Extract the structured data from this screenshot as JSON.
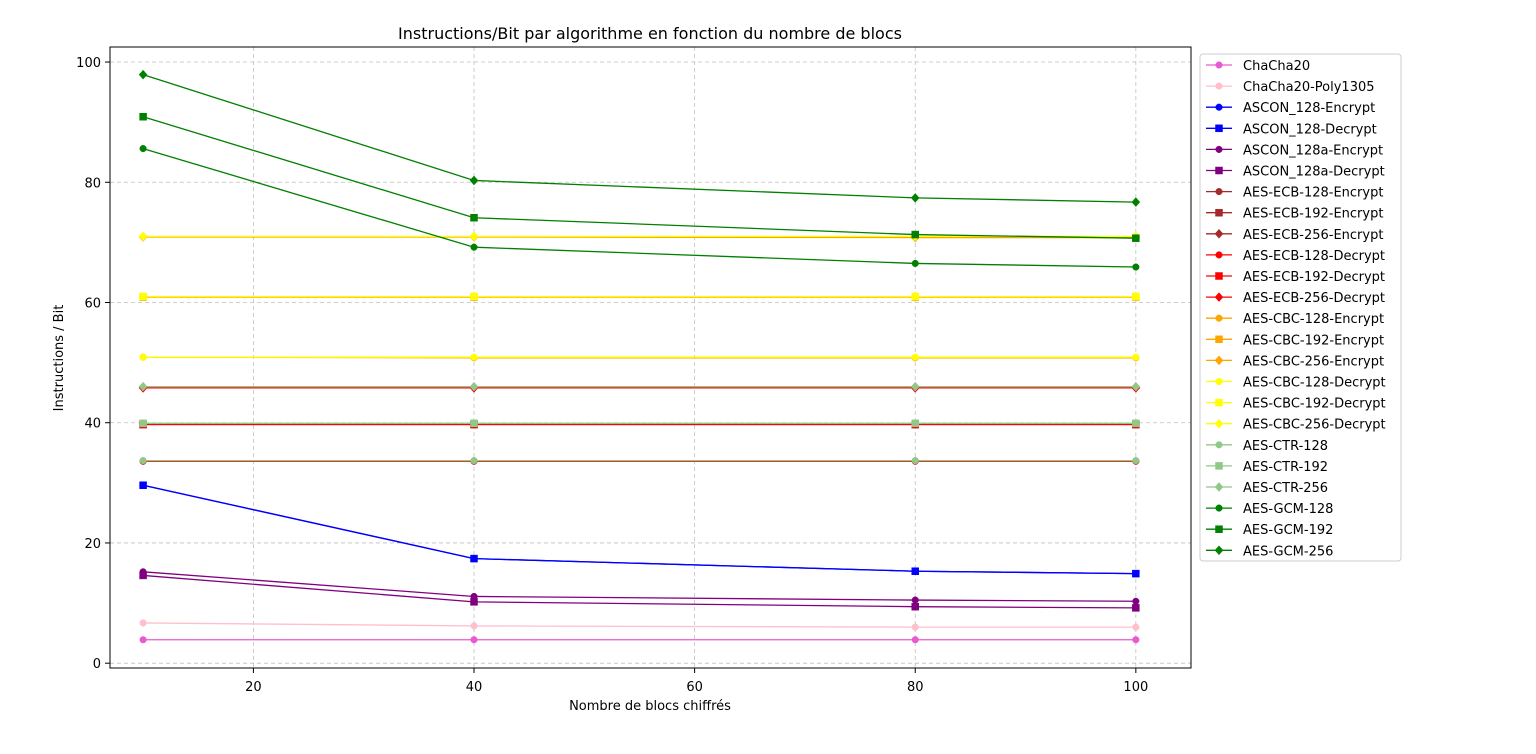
{
  "chart_data": {
    "type": "line",
    "title": "Instructions/Bit par algorithme en fonction du nombre de blocs",
    "xlabel": "Nombre de blocs chiffrés",
    "ylabel": "Instructions / Bit",
    "x": [
      10,
      40,
      80,
      100
    ],
    "xlim": [
      7,
      105
    ],
    "ylim": [
      -0.8,
      102.5
    ],
    "xticks": [
      20,
      40,
      60,
      80,
      100
    ],
    "yticks": [
      0,
      20,
      40,
      60,
      80,
      100
    ],
    "grid": true,
    "legend_position": "outside-right",
    "series": [
      {
        "name": "ChaCha20",
        "color": "#e75ad1",
        "marker": "circle",
        "values": [
          3.9,
          3.9,
          3.9,
          3.9
        ]
      },
      {
        "name": "ChaCha20-Poly1305",
        "color": "#ffc0cb",
        "marker": "circle",
        "values": [
          6.7,
          6.2,
          6.0,
          6.0
        ]
      },
      {
        "name": "ASCON_128-Encrypt",
        "color": "#0000ff",
        "marker": "circle",
        "values": [
          29.6,
          17.4,
          15.3,
          14.9
        ]
      },
      {
        "name": "ASCON_128-Decrypt",
        "color": "#0000ff",
        "marker": "square",
        "values": [
          29.6,
          17.4,
          15.3,
          14.9
        ]
      },
      {
        "name": "ASCON_128a-Encrypt",
        "color": "#800080",
        "marker": "circle",
        "values": [
          15.2,
          11.1,
          10.5,
          10.3
        ]
      },
      {
        "name": "ASCON_128a-Decrypt",
        "color": "#800080",
        "marker": "square",
        "values": [
          14.6,
          10.2,
          9.4,
          9.2
        ]
      },
      {
        "name": "AES-ECB-128-Encrypt",
        "color": "#a52a2a",
        "marker": "circle",
        "values": [
          33.6,
          33.6,
          33.6,
          33.6
        ]
      },
      {
        "name": "AES-ECB-192-Encrypt",
        "color": "#a52a2a",
        "marker": "square",
        "values": [
          39.7,
          39.7,
          39.7,
          39.7
        ]
      },
      {
        "name": "AES-ECB-256-Encrypt",
        "color": "#a52a2a",
        "marker": "diamond",
        "values": [
          45.8,
          45.8,
          45.8,
          45.8
        ]
      },
      {
        "name": "AES-ECB-128-Decrypt",
        "color": "#ff0000",
        "marker": "circle",
        "values": [
          33.6,
          33.6,
          33.6,
          33.6
        ]
      },
      {
        "name": "AES-ECB-192-Decrypt",
        "color": "#ff0000",
        "marker": "square",
        "values": [
          39.7,
          39.7,
          39.7,
          39.7
        ]
      },
      {
        "name": "AES-ECB-256-Decrypt",
        "color": "#ff0000",
        "marker": "diamond",
        "values": [
          45.8,
          45.8,
          45.8,
          45.8
        ]
      },
      {
        "name": "AES-CBC-128-Encrypt",
        "color": "#ffa500",
        "marker": "circle",
        "values": [
          50.9,
          50.8,
          50.8,
          50.8
        ]
      },
      {
        "name": "AES-CBC-192-Encrypt",
        "color": "#ffa500",
        "marker": "square",
        "values": [
          60.9,
          60.9,
          60.9,
          60.9
        ]
      },
      {
        "name": "AES-CBC-256-Encrypt",
        "color": "#ffa500",
        "marker": "diamond",
        "values": [
          70.9,
          70.9,
          70.8,
          70.8
        ]
      },
      {
        "name": "AES-CBC-128-Decrypt",
        "color": "#ffff00",
        "marker": "circle",
        "values": [
          50.9,
          50.9,
          50.9,
          50.9
        ]
      },
      {
        "name": "AES-CBC-192-Decrypt",
        "color": "#ffff00",
        "marker": "square",
        "values": [
          61.0,
          61.0,
          61.0,
          61.0
        ]
      },
      {
        "name": "AES-CBC-256-Decrypt",
        "color": "#ffff00",
        "marker": "diamond",
        "values": [
          71.0,
          71.0,
          71.0,
          71.0
        ]
      },
      {
        "name": "AES-CTR-128",
        "color": "#90c987",
        "marker": "circle",
        "values": [
          33.7,
          33.7,
          33.7,
          33.7
        ]
      },
      {
        "name": "AES-CTR-192",
        "color": "#90c987",
        "marker": "square",
        "values": [
          39.9,
          39.9,
          39.9,
          39.9
        ]
      },
      {
        "name": "AES-CTR-256",
        "color": "#90c987",
        "marker": "diamond",
        "values": [
          46.0,
          46.0,
          46.0,
          46.0
        ]
      },
      {
        "name": "AES-GCM-128",
        "color": "#008000",
        "marker": "circle",
        "values": [
          85.6,
          69.2,
          66.5,
          65.9
        ]
      },
      {
        "name": "AES-GCM-192",
        "color": "#008000",
        "marker": "square",
        "values": [
          90.9,
          74.1,
          71.3,
          70.7
        ]
      },
      {
        "name": "AES-GCM-256",
        "color": "#008000",
        "marker": "diamond",
        "values": [
          97.9,
          80.3,
          77.4,
          76.7
        ]
      }
    ]
  }
}
